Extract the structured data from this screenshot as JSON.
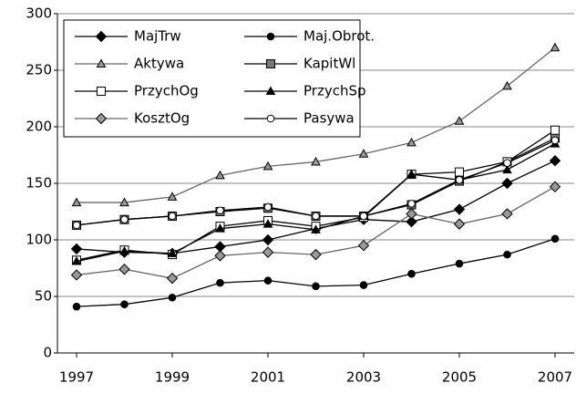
{
  "chart_data": {
    "type": "line",
    "x": [
      1997,
      1998,
      1999,
      2000,
      2001,
      2002,
      2003,
      2004,
      2005,
      2006,
      2007
    ],
    "xlim": [
      1996.6,
      2007.4
    ],
    "xticks": [
      1997,
      1999,
      2001,
      2003,
      2005,
      2007
    ],
    "ylim": [
      0,
      300
    ],
    "yticks": [
      0,
      50,
      100,
      150,
      200,
      250,
      300
    ],
    "grid": true,
    "legend": "top-left",
    "series": [
      {
        "name": "MajTrw",
        "color": "#000000",
        "marker": "diamond",
        "marker_fill": "#000000",
        "values": [
          92,
          89,
          88,
          94,
          100,
          110,
          118,
          116,
          127,
          150,
          170
        ]
      },
      {
        "name": "Maj.Obrot.",
        "color": "#000000",
        "marker": "circle",
        "marker_fill": "#000000",
        "values": [
          41,
          43,
          49,
          62,
          64,
          59,
          60,
          70,
          79,
          87,
          101
        ]
      },
      {
        "name": "Aktywa",
        "color": "#666666",
        "marker": "triangle",
        "marker_fill": "#999999",
        "values": [
          133,
          133,
          138,
          157,
          165,
          169,
          176,
          186,
          205,
          236,
          270
        ]
      },
      {
        "name": "KapitWl",
        "color": "#000000",
        "marker": "square",
        "marker_fill": "#777777",
        "values": [
          113,
          118,
          121,
          125,
          128,
          121,
          121,
          131,
          152,
          169,
          190
        ]
      },
      {
        "name": "PrzychOg",
        "color": "#000000",
        "marker": "square",
        "marker_fill": "#ffffff",
        "values": [
          82,
          91,
          87,
          112,
          117,
          112,
          120,
          158,
          160,
          169,
          197
        ]
      },
      {
        "name": "PrzychSp",
        "color": "#000000",
        "marker": "triangle",
        "marker_fill": "#000000",
        "values": [
          81,
          90,
          88,
          110,
          114,
          109,
          121,
          158,
          153,
          162,
          185
        ]
      },
      {
        "name": "KosztOg",
        "color": "#666666",
        "marker": "diamond",
        "marker_fill": "#999999",
        "values": [
          69,
          74,
          66,
          86,
          89,
          87,
          95,
          123,
          114,
          123,
          147
        ]
      },
      {
        "name": "Pasywa",
        "color": "#000000",
        "marker": "circle",
        "marker_fill": "#ffffff",
        "values": [
          113,
          118,
          121,
          126,
          129,
          121,
          121,
          132,
          153,
          168,
          188
        ]
      }
    ]
  }
}
